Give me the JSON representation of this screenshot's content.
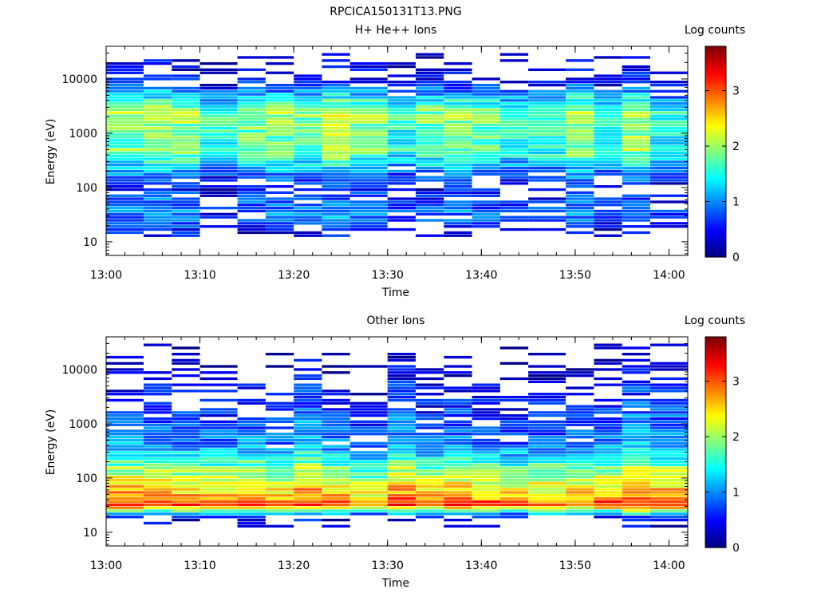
{
  "figure_title": "RPCICA150131T13.PNG",
  "chart_data": [
    {
      "type": "heatmap",
      "title": "H+ He++ Ions",
      "xlabel": "Time",
      "ylabel": "Energy (eV)",
      "colorbar_label": "Log counts",
      "colorbar_ticks": [
        "0",
        "1",
        "2",
        "3"
      ],
      "colorbar_range": [
        0,
        3.8
      ],
      "x_ticks": [
        "13:00",
        "13:10",
        "13:20",
        "13:30",
        "13:40",
        "13:50",
        "14:00"
      ],
      "y_ticks": [
        "10",
        "100",
        "1000",
        "10000"
      ],
      "y_scale": "log",
      "ylim": [
        5.6,
        40000
      ],
      "xlim": [
        "13:00",
        "14:02"
      ],
      "time_bins": [
        "13:00",
        "13:04",
        "13:07",
        "13:10",
        "13:14",
        "13:17",
        "13:20",
        "13:23",
        "13:26",
        "13:30",
        "13:33",
        "13:36",
        "13:39",
        "13:42",
        "13:45",
        "13:49",
        "13:52",
        "13:55",
        "13:58"
      ],
      "profile": [
        {
          "energy": 12,
          "value": 0.2
        },
        {
          "energy": 35,
          "value": 0.9
        },
        {
          "energy": 100,
          "value": 0.4
        },
        {
          "energy": 500,
          "value": 1.8
        },
        {
          "energy": 700,
          "value": 1.7
        },
        {
          "energy": 2500,
          "value": 1.9
        },
        {
          "energy": 10000,
          "value": 0.3
        }
      ]
    },
    {
      "type": "heatmap",
      "title": "Other Ions",
      "xlabel": "Time",
      "ylabel": "Energy (eV)",
      "colorbar_label": "Log counts",
      "colorbar_ticks": [
        "0",
        "1",
        "2",
        "3"
      ],
      "colorbar_range": [
        0,
        3.8
      ],
      "x_ticks": [
        "13:00",
        "13:10",
        "13:20",
        "13:30",
        "13:40",
        "13:50",
        "14:00"
      ],
      "y_ticks": [
        "10",
        "100",
        "1000",
        "10000"
      ],
      "y_scale": "log",
      "ylim": [
        5.6,
        40000
      ],
      "xlim": [
        "13:00",
        "14:02"
      ],
      "time_bins": [
        "13:00",
        "13:04",
        "13:07",
        "13:10",
        "13:14",
        "13:17",
        "13:20",
        "13:23",
        "13:26",
        "13:30",
        "13:33",
        "13:36",
        "13:39",
        "13:42",
        "13:45",
        "13:49",
        "13:52",
        "13:55",
        "13:58"
      ],
      "profile": [
        {
          "energy": 18,
          "value": 0.3
        },
        {
          "energy": 33,
          "value": 3.3
        },
        {
          "energy": 40,
          "value": 2.8
        },
        {
          "energy": 150,
          "value": 1.9
        },
        {
          "energy": 400,
          "value": 1.0
        },
        {
          "energy": 3000,
          "value": 0.5
        }
      ]
    }
  ],
  "colors": {
    "colormap": [
      "#00007f",
      "#0000ff",
      "#007fff",
      "#00ffff",
      "#7fff7f",
      "#ffff00",
      "#ff7f00",
      "#ff0000",
      "#7f0000"
    ]
  }
}
